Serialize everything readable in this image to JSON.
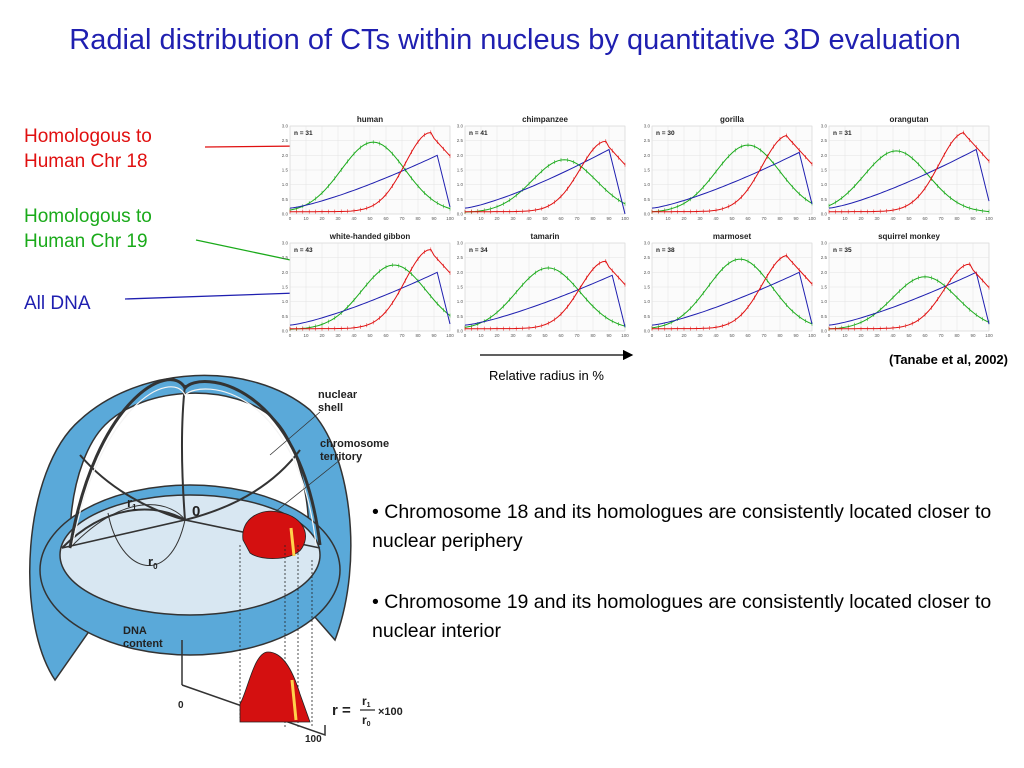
{
  "title": "Radial distribution of CTs within nucleus by quantitative 3D evaluation",
  "labels": {
    "chr18": "Homologous to Human Chr 18",
    "chr19": "Homologous to Human Chr 19",
    "all_dna": "All DNA"
  },
  "colors": {
    "title": "#1f1fb0",
    "chr18": "#e01010",
    "chr19": "#1aaa1a",
    "all_dna": "#1f1fb0"
  },
  "citation": "(Tanabe et al, 2002)",
  "xaxis_caption": "Relative radius in %",
  "chart_data": {
    "type": "line",
    "xlabel": "Relative radius in %",
    "x_ticks": [
      0,
      10,
      20,
      30,
      40,
      50,
      60,
      70,
      80,
      90,
      100
    ],
    "y_ticks": [
      0.0,
      0.5,
      1.0,
      1.5,
      2.0,
      2.5,
      3.0
    ],
    "xlim": [
      0,
      100
    ],
    "ylim": [
      0,
      3.0
    ],
    "series_names": [
      "Chr 18 homologue",
      "Chr 19 homologue",
      "All DNA"
    ],
    "panels": [
      {
        "name": "human",
        "n": "n = 31",
        "peaks": {
          "chr18": [
            88,
            2.7
          ],
          "chr19": [
            52,
            2.4
          ],
          "all_dna": [
            92,
            2.0
          ]
        }
      },
      {
        "name": "chimpanzee",
        "n": "n = 41",
        "peaks": {
          "chr18": [
            88,
            2.4
          ],
          "chr19": [
            62,
            1.8
          ],
          "all_dna": [
            90,
            2.2
          ]
        }
      },
      {
        "name": "gorilla",
        "n": "n = 30",
        "peaks": {
          "chr18": [
            85,
            2.6
          ],
          "chr19": [
            60,
            2.3
          ],
          "all_dna": [
            92,
            2.1
          ]
        }
      },
      {
        "name": "orangutan",
        "n": "n = 31",
        "peaks": {
          "chr18": [
            85,
            2.7
          ],
          "chr19": [
            42,
            2.1
          ],
          "all_dna": [
            92,
            2.2
          ]
        }
      },
      {
        "name": "white-handed gibbon",
        "n": "n = 43",
        "peaks": {
          "chr18": [
            88,
            2.7
          ],
          "chr19": [
            65,
            2.2
          ],
          "all_dna": [
            92,
            2.0
          ]
        }
      },
      {
        "name": "tamarin",
        "n": "n = 34",
        "peaks": {
          "chr18": [
            88,
            2.3
          ],
          "chr19": [
            52,
            2.1
          ],
          "all_dna": [
            92,
            1.9
          ]
        }
      },
      {
        "name": "marmoset",
        "n": "n = 38",
        "peaks": {
          "chr18": [
            85,
            2.5
          ],
          "chr19": [
            55,
            2.4
          ],
          "all_dna": [
            92,
            2.0
          ]
        }
      },
      {
        "name": "squirrel monkey",
        "n": "n = 35",
        "peaks": {
          "chr18": [
            88,
            2.2
          ],
          "chr19": [
            60,
            1.8
          ],
          "all_dna": [
            92,
            2.0
          ]
        }
      }
    ]
  },
  "diagram": {
    "nuclear_shell": [
      "nuclear",
      "shell"
    ],
    "chromosome_territory": [
      "chromosome",
      "territory"
    ],
    "r1": "r",
    "r1_sub": "1",
    "r0": "r",
    "r0_sub": "0",
    "origin": "0",
    "dna_content": [
      "DNA",
      "content"
    ],
    "axis_zero": "0",
    "axis_hundred": "100",
    "formula_lhs": "r =",
    "formula_num": "r",
    "formula_num_sub": "1",
    "formula_den": "r",
    "formula_den_sub": "0",
    "formula_mult": "×100"
  },
  "bullets": [
    "• Chromosome 18 and its homologues are consistently located closer to nuclear periphery",
    "• Chromosome 19 and its homologues are consistently located closer to nuclear interior"
  ]
}
